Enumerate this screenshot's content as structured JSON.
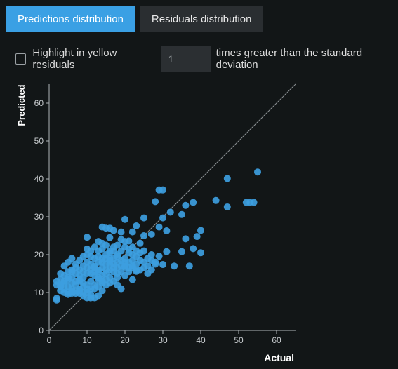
{
  "tabs": [
    {
      "label": "Predictions distribution",
      "active": true
    },
    {
      "label": "Residuals distribution",
      "active": false
    }
  ],
  "controls": {
    "highlight_label": "Highlight in yellow residuals",
    "multiplier_value": "1",
    "suffix_label": "times greater than the standard deviation",
    "checked": false
  },
  "colors": {
    "accent": "#3aa0e4",
    "point": "#3d9ee0",
    "background": "#121617"
  },
  "chart_data": {
    "type": "scatter",
    "xlabel": "Actual",
    "ylabel": "Predicted",
    "xlim": [
      0,
      65
    ],
    "ylim": [
      0,
      65
    ],
    "xticks": [
      0,
      10,
      20,
      30,
      40,
      50,
      60
    ],
    "yticks": [
      0,
      10,
      20,
      30,
      40,
      50,
      60
    ],
    "reference_line": "y = x",
    "grid": false,
    "points": [
      [
        55,
        41.8
      ],
      [
        47,
        40.1
      ],
      [
        44,
        34.3
      ],
      [
        52,
        33.8
      ],
      [
        53,
        33.8
      ],
      [
        54,
        33.8
      ],
      [
        47,
        32.6
      ],
      [
        29,
        37.1
      ],
      [
        30,
        37.1
      ],
      [
        28,
        34.0
      ],
      [
        38,
        33.8
      ],
      [
        36,
        33.0
      ],
      [
        35,
        30.6
      ],
      [
        32,
        31.2
      ],
      [
        30,
        29.7
      ],
      [
        29,
        27.3
      ],
      [
        25,
        29.7
      ],
      [
        20,
        29.3
      ],
      [
        16,
        27.0
      ],
      [
        14,
        27.3
      ],
      [
        15,
        27.0
      ],
      [
        10,
        24.6
      ],
      [
        27,
        25.4
      ],
      [
        31,
        26.3
      ],
      [
        40,
        26.4
      ],
      [
        39,
        24.8
      ],
      [
        36,
        24.2
      ],
      [
        38,
        21.6
      ],
      [
        35,
        20.8
      ],
      [
        37,
        17.0
      ],
      [
        40,
        20.5
      ],
      [
        31,
        20.8
      ],
      [
        29,
        19.6
      ],
      [
        33,
        17.0
      ],
      [
        30,
        17.4
      ],
      [
        27,
        20.0
      ],
      [
        25,
        18.0
      ],
      [
        26,
        15.0
      ],
      [
        23,
        15.6
      ],
      [
        22,
        13.4
      ],
      [
        20,
        16.7
      ],
      [
        18,
        15.0
      ],
      [
        21,
        23.6
      ],
      [
        22,
        26.0
      ],
      [
        24,
        23.0
      ],
      [
        23,
        27.6
      ],
      [
        25,
        25.0
      ],
      [
        17,
        26.4
      ],
      [
        19,
        26.0
      ],
      [
        4,
        17.0
      ],
      [
        5,
        18.0
      ],
      [
        6,
        16.0
      ],
      [
        3,
        15.0
      ],
      [
        2,
        13.0
      ],
      [
        3,
        12.0
      ],
      [
        2,
        8.0
      ],
      [
        2,
        8.5
      ],
      [
        4,
        11.0
      ],
      [
        5,
        10.0
      ],
      [
        6,
        9.8
      ],
      [
        8,
        9.8
      ],
      [
        9,
        9.2
      ],
      [
        10,
        8.6
      ],
      [
        11,
        8.6
      ],
      [
        12,
        8.6
      ],
      [
        13,
        9.2
      ],
      [
        7,
        12.0
      ],
      [
        8,
        13.0
      ],
      [
        9,
        14.0
      ],
      [
        10,
        15.0
      ],
      [
        11,
        16.0
      ],
      [
        12,
        17.0
      ],
      [
        13,
        18.0
      ],
      [
        14,
        19.0
      ],
      [
        15,
        20.0
      ],
      [
        16,
        21.0
      ],
      [
        17,
        22.0
      ],
      [
        12,
        22.0
      ],
      [
        13,
        21.0
      ],
      [
        10,
        20.0
      ],
      [
        11,
        19.5
      ],
      [
        14,
        21.5
      ],
      [
        16,
        19.0
      ],
      [
        18,
        20.0
      ],
      [
        19,
        21.0
      ],
      [
        20,
        22.0
      ],
      [
        21,
        20.5
      ],
      [
        22,
        18.5
      ],
      [
        23,
        19.5
      ],
      [
        24,
        20.5
      ],
      [
        15,
        15.0
      ],
      [
        16,
        14.0
      ],
      [
        17,
        13.0
      ],
      [
        18,
        12.0
      ],
      [
        19,
        11.0
      ],
      [
        14,
        12.5
      ],
      [
        13,
        13.5
      ],
      [
        12,
        14.5
      ],
      [
        11,
        13.0
      ],
      [
        10,
        12.0
      ],
      [
        9,
        11.5
      ],
      [
        8,
        11.0
      ],
      [
        7,
        10.5
      ],
      [
        6,
        12.5
      ],
      [
        5,
        13.5
      ],
      [
        4,
        14.5
      ],
      [
        6,
        14.0
      ],
      [
        7,
        15.0
      ],
      [
        8,
        16.0
      ],
      [
        9,
        17.0
      ],
      [
        10,
        18.0
      ],
      [
        11,
        17.5
      ],
      [
        12,
        16.5
      ],
      [
        13,
        15.5
      ],
      [
        14,
        16.5
      ],
      [
        15,
        17.5
      ],
      [
        16,
        18.5
      ],
      [
        17,
        17.5
      ],
      [
        18,
        16.5
      ],
      [
        19,
        15.5
      ],
      [
        20,
        14.5
      ],
      [
        21,
        15.5
      ],
      [
        22,
        16.5
      ],
      [
        23,
        17.5
      ],
      [
        24,
        16.0
      ],
      [
        25,
        16.5
      ],
      [
        26,
        17.0
      ],
      [
        27,
        16.0
      ],
      [
        28,
        18.0
      ],
      [
        18,
        18.0
      ],
      [
        17,
        19.0
      ],
      [
        16,
        16.0
      ],
      [
        15,
        12.0
      ],
      [
        14,
        10.5
      ],
      [
        13,
        11.5
      ],
      [
        12,
        12.0
      ],
      [
        11,
        11.0
      ],
      [
        10,
        10.0
      ],
      [
        9,
        12.5
      ],
      [
        8,
        13.5
      ],
      [
        7,
        13.0
      ],
      [
        6,
        11.0
      ],
      [
        5,
        11.5
      ],
      [
        4,
        12.5
      ],
      [
        3,
        10.5
      ],
      [
        15,
        22.5
      ],
      [
        14,
        23.0
      ],
      [
        13,
        23.5
      ],
      [
        19,
        24.0
      ],
      [
        20,
        23.5
      ],
      [
        16,
        24.5
      ],
      [
        18,
        22.5
      ],
      [
        20,
        19.0
      ],
      [
        21,
        18.0
      ],
      [
        22,
        17.0
      ],
      [
        12,
        19.0
      ],
      [
        11,
        21.0
      ],
      [
        9,
        19.5
      ],
      [
        10,
        21.5
      ],
      [
        8,
        18.5
      ],
      [
        7,
        17.5
      ],
      [
        6,
        19.0
      ],
      [
        5,
        15.5
      ],
      [
        13,
        19.5
      ],
      [
        14,
        18.0
      ],
      [
        15,
        19.0
      ],
      [
        16,
        20.5
      ],
      [
        17,
        21.0
      ],
      [
        19,
        18.5
      ],
      [
        20,
        17.0
      ],
      [
        21,
        21.5
      ],
      [
        22,
        22.0
      ],
      [
        23,
        21.0
      ],
      [
        24,
        18.5
      ],
      [
        26,
        19.0
      ],
      [
        27,
        18.5
      ],
      [
        28,
        17.5
      ],
      [
        25,
        21.0
      ],
      [
        18,
        14.0
      ],
      [
        17,
        15.5
      ],
      [
        16,
        12.5
      ],
      [
        15,
        13.5
      ],
      [
        14,
        14.5
      ],
      [
        13,
        16.0
      ],
      [
        12,
        11.0
      ],
      [
        11,
        9.5
      ],
      [
        10,
        11.0
      ],
      [
        9,
        10.0
      ],
      [
        8,
        10.5
      ],
      [
        7,
        9.8
      ],
      [
        6,
        10.2
      ],
      [
        5,
        9.5
      ],
      [
        4,
        10.0
      ],
      [
        3,
        11.5
      ],
      [
        10,
        16.5
      ],
      [
        11,
        15.0
      ],
      [
        12,
        15.5
      ],
      [
        13,
        14.0
      ],
      [
        14,
        13.0
      ],
      [
        15,
        16.0
      ],
      [
        16,
        17.5
      ],
      [
        17,
        16.5
      ],
      [
        18,
        19.5
      ],
      [
        19,
        17.0
      ],
      [
        20,
        18.0
      ],
      [
        21,
        16.5
      ],
      [
        22,
        20.0
      ],
      [
        23,
        16.0
      ],
      [
        9,
        15.5
      ],
      [
        8,
        14.5
      ],
      [
        7,
        16.5
      ],
      [
        6,
        15.5
      ],
      [
        5,
        14.0
      ],
      [
        4,
        13.0
      ],
      [
        3,
        13.5
      ],
      [
        2,
        12.0
      ]
    ]
  }
}
